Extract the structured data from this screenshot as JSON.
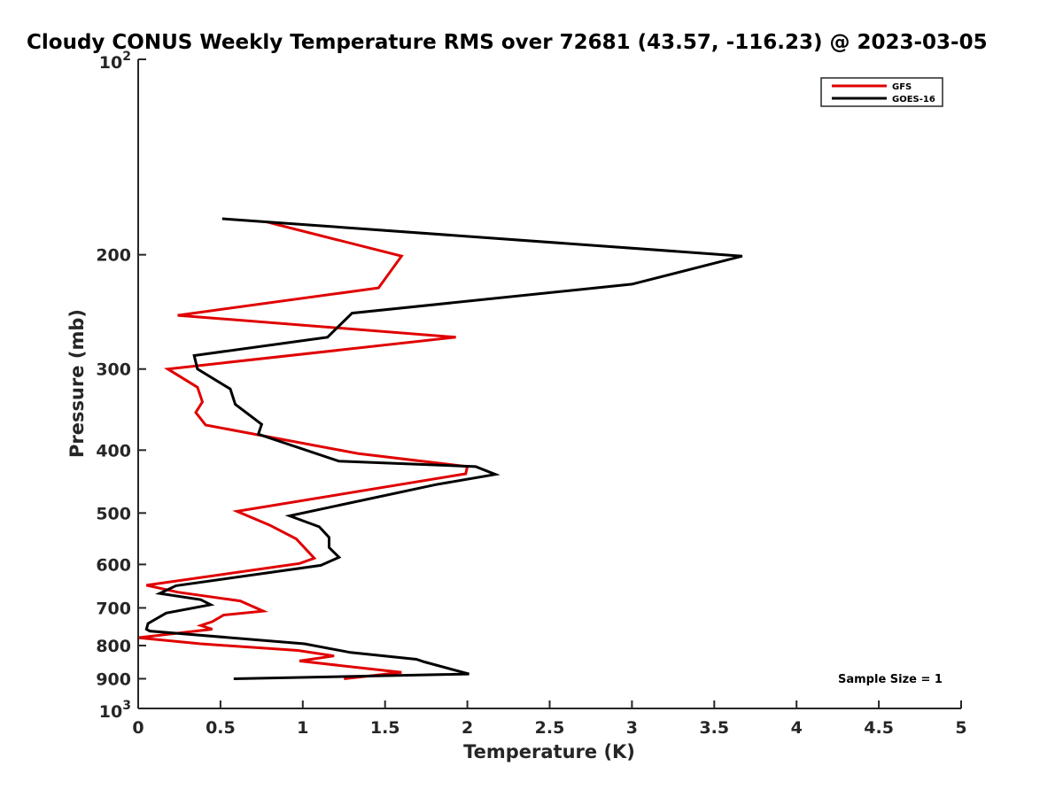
{
  "chart_data": {
    "type": "line",
    "title": "Cloudy CONUS Weekly Temperature RMS over 72681 (43.57, -116.23) @ 2023-03-05",
    "xlabel": "Temperature (K)",
    "ylabel": "Pressure (mb)",
    "xlim": [
      0,
      5
    ],
    "ylim": [
      100,
      1000
    ],
    "yscale": "log",
    "y_reversed": true,
    "grid": false,
    "legend_position": "top-right",
    "xticks": [
      0,
      0.5,
      1,
      1.5,
      2,
      2.5,
      3,
      3.5,
      4,
      4.5,
      5
    ],
    "xtick_labels": [
      "0",
      "0.5",
      "1",
      "1.5",
      "2",
      "2.5",
      "3",
      "3.5",
      "4",
      "4.5",
      "5"
    ],
    "yticks": [
      200,
      300,
      400,
      500,
      600,
      700,
      800,
      900
    ],
    "ytick_labels": [
      "200",
      "300",
      "400",
      "500",
      "600",
      "700",
      "800",
      "900"
    ],
    "y_decade_ticks": [
      {
        "value": 100,
        "base": "10",
        "exp": "2"
      },
      {
        "value": 1000,
        "base": "10",
        "exp": "3"
      }
    ],
    "annotation": "Sample Size = 1",
    "series": [
      {
        "name": "GFS",
        "color": "#e00000",
        "x": [
          0.78,
          1.6,
          1.46,
          0.24,
          1.93,
          0.18,
          0.36,
          0.39,
          0.35,
          0.41,
          1.34,
          2.0,
          1.99,
          0.6,
          0.8,
          0.96,
          1.07,
          0.98,
          0.05,
          0.24,
          0.62,
          0.76,
          0.52,
          0.45,
          0.38,
          0.45,
          0.0,
          0.38,
          0.97,
          1.19,
          0.98,
          1.6,
          1.25
        ],
        "y": [
          178,
          201,
          225,
          248,
          268,
          300,
          320,
          337,
          350,
          366,
          405,
          424,
          435,
          497,
          522,
          548,
          587,
          598,
          646,
          662,
          683,
          708,
          718,
          735,
          745,
          755,
          778,
          795,
          814,
          830,
          845,
          880,
          900
        ]
      },
      {
        "name": "GOES-16",
        "color": "#000000",
        "x": [
          0.51,
          3.67,
          3.0,
          1.3,
          1.15,
          0.34,
          0.36,
          0.56,
          0.59,
          0.75,
          0.73,
          1.22,
          2.05,
          2.17,
          1.81,
          0.92,
          1.1,
          1.16,
          1.16,
          1.22,
          1.11,
          0.23,
          0.13,
          0.38,
          0.44,
          0.17,
          0.06,
          0.05,
          0.07,
          1.01,
          1.29,
          1.69,
          1.74,
          2.01,
          0.58
        ],
        "y": [
          176,
          201,
          222,
          246,
          268,
          286,
          300,
          322,
          340,
          365,
          378,
          416,
          424,
          436,
          452,
          505,
          525,
          545,
          565,
          585,
          602,
          647,
          665,
          680,
          692,
          713,
          740,
          755,
          760,
          795,
          820,
          840,
          848,
          885,
          900
        ]
      }
    ]
  }
}
